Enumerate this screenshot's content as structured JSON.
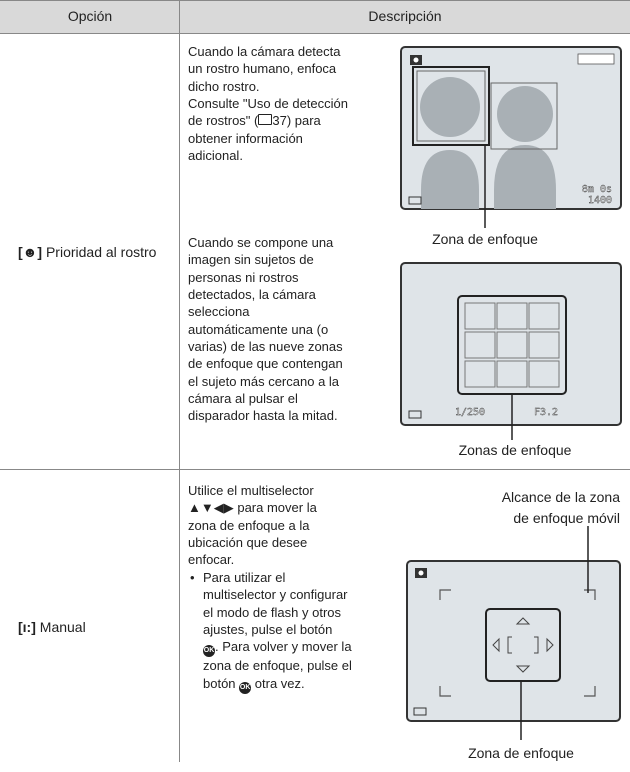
{
  "table": {
    "headers": [
      "Opción",
      "Descripción"
    ],
    "rows": [
      {
        "option": "Prioridad al rostro",
        "descriptions": [
          {
            "lines": [
              "Cuando la cámara detecta",
              "un rostro humano, enfoca",
              "dicho rostro.",
              "Consulte \"Uso de detección",
              "de rostros\" (",
              "37) para",
              "obtener información",
              "adicional."
            ],
            "caption": "Zona de enfoque",
            "screen": [
              "8m 0s",
              "1400"
            ]
          },
          {
            "lines": [
              "Cuando se compone una",
              "imagen sin sujetos de",
              "personas ni rostros",
              "detectados, la cámara",
              "selecciona",
              "automáticamente una (o",
              "varias) de las nueve zonas",
              "de enfoque que contengan",
              "el sujeto más cercano a la",
              "cámara al pulsar el",
              "disparador hasta la mitad."
            ],
            "caption": "Zonas de enfoque",
            "screen": [
              "1/250",
              "F3.2"
            ]
          }
        ]
      },
      {
        "option": "Manual",
        "description": {
          "lines": [
            "Utilice el multiselector",
            "▲▼◀▶ para mover la",
            "zona de enfoque a la",
            "ubicación que desee",
            "enfocar."
          ],
          "bullet": [
            "Para utilizar el",
            "multiselector y configurar",
            "el modo de flash y otros",
            "ajustes, pulse el botón",
            ". Para volver y mover la",
            "zona de enfoque, pulse el",
            "botón",
            "otra vez."
          ],
          "callout": [
            "Alcance de la zona",
            "de enfoque móvil"
          ],
          "caption": "Zona de enfoque"
        }
      }
    ]
  }
}
